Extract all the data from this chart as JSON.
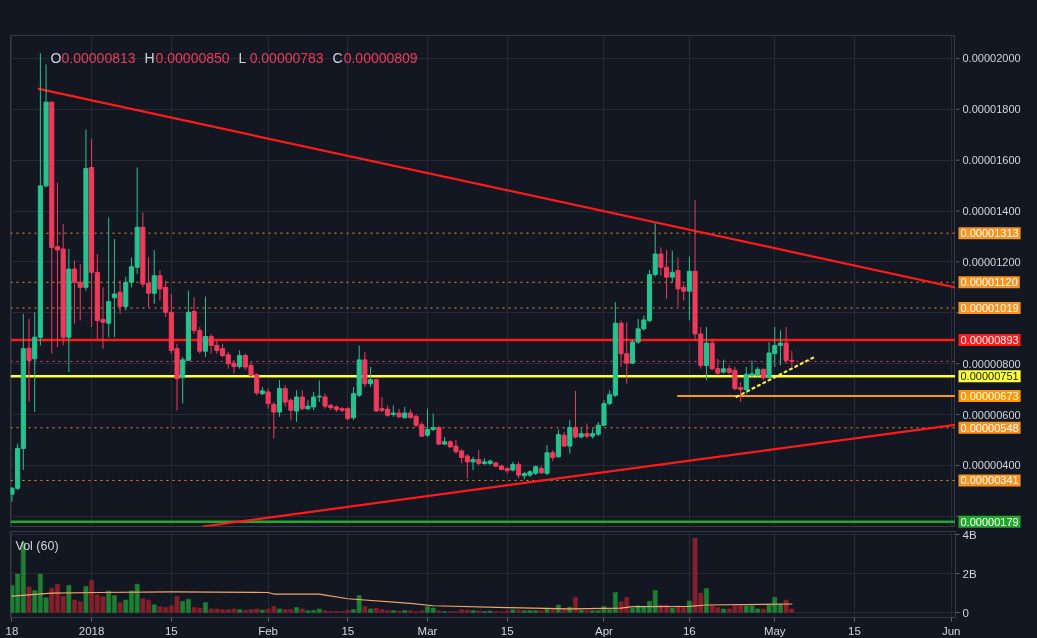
{
  "chart_data": [
    {
      "type": "candlestick",
      "x": [
        "2017-12-18",
        "2017-12-19",
        "2017-12-20",
        "2017-12-21",
        "2017-12-22",
        "2017-12-23",
        "2017-12-24",
        "2017-12-25",
        "2017-12-26",
        "2017-12-27",
        "2017-12-28",
        "2017-12-29",
        "2017-12-30",
        "2017-12-31",
        "2018-01-01",
        "2018-01-02",
        "2018-01-03",
        "2018-01-04",
        "2018-01-05",
        "2018-01-06",
        "2018-01-07",
        "2018-01-08",
        "2018-01-09",
        "2018-01-10",
        "2018-01-11",
        "2018-01-12",
        "2018-01-13",
        "2018-01-14",
        "2018-01-15",
        "2018-01-16",
        "2018-01-17",
        "2018-01-18",
        "2018-01-19",
        "2018-01-20",
        "2018-01-21",
        "2018-01-22",
        "2018-01-23",
        "2018-01-24",
        "2018-01-25",
        "2018-01-26",
        "2018-01-27",
        "2018-01-28",
        "2018-01-29",
        "2018-01-30",
        "2018-01-31",
        "2018-02-01",
        "2018-02-02",
        "2018-02-03",
        "2018-02-04",
        "2018-02-05",
        "2018-02-06",
        "2018-02-07",
        "2018-02-08",
        "2018-02-09",
        "2018-02-10",
        "2018-02-11",
        "2018-02-12",
        "2018-02-13",
        "2018-02-14",
        "2018-02-15",
        "2018-02-16",
        "2018-02-17",
        "2018-02-18",
        "2018-02-19",
        "2018-02-20",
        "2018-02-21",
        "2018-02-22",
        "2018-02-23",
        "2018-02-24",
        "2018-02-25",
        "2018-02-26",
        "2018-02-27",
        "2018-02-28",
        "2018-03-01",
        "2018-03-02",
        "2018-03-03",
        "2018-03-04",
        "2018-03-05",
        "2018-03-06",
        "2018-03-07",
        "2018-03-08",
        "2018-03-09",
        "2018-03-10",
        "2018-03-11",
        "2018-03-12",
        "2018-03-13",
        "2018-03-14",
        "2018-03-15",
        "2018-03-16",
        "2018-03-17",
        "2018-03-18",
        "2018-03-19",
        "2018-03-20",
        "2018-03-21",
        "2018-03-22",
        "2018-03-23",
        "2018-03-24",
        "2018-03-25",
        "2018-03-26",
        "2018-03-27",
        "2018-03-28",
        "2018-03-29",
        "2018-03-30",
        "2018-03-31",
        "2018-04-01",
        "2018-04-02",
        "2018-04-03",
        "2018-04-04",
        "2018-04-05",
        "2018-04-06",
        "2018-04-07",
        "2018-04-08",
        "2018-04-09",
        "2018-04-10",
        "2018-04-11",
        "2018-04-12",
        "2018-04-13",
        "2018-04-14",
        "2018-04-15",
        "2018-04-16",
        "2018-04-17",
        "2018-04-18",
        "2018-04-19",
        "2018-04-20",
        "2018-04-21",
        "2018-04-22",
        "2018-04-23",
        "2018-04-24",
        "2018-04-25",
        "2018-04-26",
        "2018-04-27",
        "2018-04-28",
        "2018-04-29",
        "2018-04-30",
        "2018-05-01",
        "2018-05-02",
        "2018-05-03",
        "2018-05-04"
      ],
      "ohlc": [
        [
          2.87e-06,
          3.16e-06,
          2.57e-06,
          3.1e-06
        ],
        [
          3.1e-06,
          4.86e-06,
          3.03e-06,
          4.67e-06
        ],
        [
          4.67e-06,
          9.96e-06,
          3.82e-06,
          8.59e-06
        ],
        [
          8.61e-06,
          9.76e-06,
          6.5e-06,
          8.13e-06
        ],
        [
          8.19e-06,
          1.002e-05,
          6.1e-06,
          9.04e-06
        ],
        [
          9.04e-06,
          2.02e-05,
          8.72e-06,
          1.499e-05
        ],
        [
          1.499e-05,
          1.976e-05,
          1.493e-05,
          1.828e-05
        ],
        [
          1.828e-05,
          1.83e-05,
          8.39e-06,
          1.257e-05
        ],
        [
          1.26e-05,
          1.512e-05,
          8.65e-06,
          1.247e-05
        ],
        [
          1.251e-05,
          1.349e-05,
          8.72e-06,
          9.04e-06
        ],
        [
          9.04e-06,
          1.251e-05,
          7.67e-06,
          1.172e-05
        ],
        [
          1.172e-05,
          1.205e-05,
          9.57e-06,
          1.12e-05
        ],
        [
          1.12e-05,
          1.192e-05,
          9.7e-06,
          1.1e-05
        ],
        [
          1.1e-05,
          1.721e-05,
          1.087e-05,
          1.567e-05
        ],
        [
          1.571e-05,
          1.682e-05,
          9.44e-06,
          1.159e-05
        ],
        [
          1.159e-05,
          1.231e-05,
          8.98e-06,
          9.7e-06
        ],
        [
          9.74e-06,
          1.1e-05,
          8.59e-06,
          9.63e-06
        ],
        [
          9.59e-06,
          1.375e-05,
          9.04e-06,
          1.044e-05
        ],
        [
          1.059e-05,
          1.29e-05,
          9.04e-06,
          1.074e-05
        ],
        [
          1.081e-05,
          1.127e-05,
          9.96e-06,
          1.025e-05
        ],
        [
          1.025e-05,
          1.142e-05,
          1.009e-05,
          1.12e-05
        ],
        [
          1.12e-05,
          1.218e-05,
          1.1e-05,
          1.181e-05
        ],
        [
          1.179e-05,
          1.571e-05,
          1.153e-05,
          1.336e-05
        ],
        [
          1.336e-05,
          1.394e-05,
          1.1e-05,
          1.113e-05
        ],
        [
          1.116e-05,
          1.218e-05,
          1.022e-05,
          1.077e-05
        ],
        [
          1.077e-05,
          1.247e-05,
          1.035e-05,
          1.146e-05
        ],
        [
          1.146e-05,
          1.166e-05,
          1.048e-05,
          1.094e-05
        ],
        [
          1.1e-05,
          1.127e-05,
          9.83e-06,
          1.002e-05
        ],
        [
          1.002e-05,
          1.074e-05,
          8.39e-06,
          8.52e-06
        ],
        [
          8.59e-06,
          8.78e-06,
          6.17e-06,
          7.41e-06
        ],
        [
          7.45e-06,
          8.26e-06,
          6.43e-06,
          8.15e-06
        ],
        [
          8.13e-06,
          1.087e-05,
          8.13e-06,
          1.002e-05
        ],
        [
          1.005e-05,
          1.061e-05,
          9.17e-06,
          9.3e-06
        ],
        [
          9.3e-06,
          9.44e-06,
          8.39e-06,
          8.49e-06
        ],
        [
          8.49e-06,
          1.064e-05,
          8.26e-06,
          9.07e-06
        ],
        [
          9.07e-06,
          9.17e-06,
          8.39e-06,
          8.72e-06
        ],
        [
          8.72e-06,
          8.91e-06,
          8.39e-06,
          8.52e-06
        ],
        [
          8.59e-06,
          8.78e-06,
          8.26e-06,
          8.32e-06
        ],
        [
          8.35e-06,
          8.46e-06,
          7.8e-06,
          8e-06
        ],
        [
          8.02e-06,
          8.13e-06,
          7.61e-06,
          7.89e-06
        ],
        [
          7.89e-06,
          8.52e-06,
          7.8e-06,
          8.32e-06
        ],
        [
          8.32e-06,
          8.39e-06,
          7.76e-06,
          7.87e-06
        ],
        [
          7.93e-06,
          8.06e-06,
          7.48e-06,
          7.54e-06
        ],
        [
          7.57e-06,
          7.61e-06,
          6.76e-06,
          6.85e-06
        ],
        [
          6.82e-06,
          7.08e-06,
          6.76e-06,
          6.93e-06
        ],
        [
          6.89e-06,
          7.02e-06,
          6.23e-06,
          6.43e-06
        ],
        [
          6.4e-06,
          6.5e-06,
          5.06e-06,
          6.1e-06
        ],
        [
          6.1e-06,
          7.35e-06,
          5.91e-06,
          7.02e-06
        ],
        [
          7.02e-06,
          7.15e-06,
          6.3e-06,
          6.49e-06
        ],
        [
          6.56e-06,
          6.63e-06,
          5.78e-06,
          6.17e-06
        ],
        [
          6.14e-06,
          6.95e-06,
          5.71e-06,
          6.69e-06
        ],
        [
          6.69e-06,
          6.95e-06,
          6.17e-06,
          6.23e-06
        ],
        [
          6.23e-06,
          6.56e-06,
          6.17e-06,
          6.33e-06
        ],
        [
          6.3e-06,
          6.89e-06,
          6.17e-06,
          6.69e-06
        ],
        [
          6.69e-06,
          7.34e-06,
          6.5e-06,
          6.72e-06
        ],
        [
          6.69e-06,
          6.82e-06,
          6.23e-06,
          6.33e-06
        ],
        [
          6.36e-06,
          6.43e-06,
          6.17e-06,
          6.27e-06
        ],
        [
          6.3e-06,
          6.36e-06,
          6.1e-06,
          6.2e-06
        ],
        [
          6.23e-06,
          6.3e-06,
          6.1e-06,
          6.17e-06
        ],
        [
          6.23e-06,
          6.3e-06,
          5.78e-06,
          5.84e-06
        ],
        [
          5.88e-06,
          7.08e-06,
          5.78e-06,
          6.82e-06
        ],
        [
          6.76e-06,
          8.72e-06,
          6.69e-06,
          8.15e-06
        ],
        [
          8.15e-06,
          8.46e-06,
          7.08e-06,
          7.21e-06
        ],
        [
          7.21e-06,
          7.87e-06,
          7.08e-06,
          7.37e-06
        ],
        [
          7.37e-06,
          7.41e-06,
          6.1e-06,
          6.14e-06
        ],
        [
          6.23e-06,
          6.69e-06,
          6.1e-06,
          6.17e-06
        ],
        [
          6.21e-06,
          6.36e-06,
          5.91e-06,
          5.97e-06
        ],
        [
          6e-06,
          6.36e-06,
          5.91e-06,
          6.06e-06
        ],
        [
          6.06e-06,
          6.23e-06,
          5.88e-06,
          5.91e-06
        ],
        [
          5.88e-06,
          6.3e-06,
          5.84e-06,
          6.06e-06
        ],
        [
          6.06e-06,
          6.2e-06,
          5.84e-06,
          5.88e-06
        ],
        [
          5.93e-06,
          6e-06,
          5.51e-06,
          5.58e-06
        ],
        [
          5.6e-06,
          5.71e-06,
          5.12e-06,
          5.15e-06
        ],
        [
          5.19e-06,
          6.24e-06,
          5.12e-06,
          5.41e-06
        ],
        [
          5.41e-06,
          6.04e-06,
          5.35e-06,
          5.49e-06
        ],
        [
          5.49e-06,
          5.56e-06,
          4.8e-06,
          4.84e-06
        ],
        [
          4.84e-06,
          5.12e-06,
          4.8e-06,
          4.93e-06
        ],
        [
          4.93e-06,
          5e-06,
          4.7e-06,
          4.73e-06
        ],
        [
          4.76e-06,
          5e-06,
          4.47e-06,
          4.54e-06
        ],
        [
          4.57e-06,
          4.63e-06,
          4.08e-06,
          4.31e-06
        ],
        [
          4.37e-06,
          4.44e-06,
          3.49e-06,
          4.14e-06
        ],
        [
          4.14e-06,
          4.34e-06,
          3.82e-06,
          4.23e-06
        ],
        [
          4.23e-06,
          4.6e-06,
          4e-06,
          4.08e-06
        ],
        [
          4.08e-06,
          4.28e-06,
          4.02e-06,
          4.14e-06
        ],
        [
          4.08e-06,
          4.23e-06,
          4.02e-06,
          4.17e-06
        ],
        [
          4.1e-06,
          4.14e-06,
          3.95e-06,
          3.97e-06
        ],
        [
          3.98e-06,
          4.04e-06,
          3.8e-06,
          3.84e-06
        ],
        [
          3.88e-06,
          3.94e-06,
          3.69e-06,
          3.79e-06
        ],
        [
          3.82e-06,
          4.14e-06,
          3.76e-06,
          4.04e-06
        ],
        [
          4.04e-06,
          4.14e-06,
          3.49e-06,
          3.62e-06
        ],
        [
          3.59e-06,
          3.75e-06,
          3.45e-06,
          3.68e-06
        ],
        [
          3.62e-06,
          3.82e-06,
          3.55e-06,
          3.75e-06
        ],
        [
          3.69e-06,
          4e-06,
          3.62e-06,
          3.95e-06
        ],
        [
          3.88e-06,
          3.98e-06,
          3.66e-06,
          3.71e-06
        ],
        [
          3.69e-06,
          4.8e-06,
          3.62e-06,
          4.5e-06
        ],
        [
          4.5e-06,
          4.6e-06,
          4.18e-06,
          4.31e-06
        ],
        [
          4.34e-06,
          5.41e-06,
          4.31e-06,
          5.21e-06
        ],
        [
          5.19e-06,
          5.32e-06,
          4.73e-06,
          4.76e-06
        ],
        [
          4.76e-06,
          5.78e-06,
          4.47e-06,
          5.49e-06
        ],
        [
          5.49e-06,
          6.93e-06,
          5.06e-06,
          5.12e-06
        ],
        [
          5.12e-06,
          5.45e-06,
          5.06e-06,
          5.25e-06
        ],
        [
          5.25e-06,
          5.65e-06,
          5.06e-06,
          5.15e-06
        ],
        [
          5.15e-06,
          5.45e-06,
          5.06e-06,
          5.25e-06
        ],
        [
          5.23e-06,
          5.71e-06,
          5.15e-06,
          5.58e-06
        ],
        [
          5.58e-06,
          6.56e-06,
          5.54e-06,
          6.43e-06
        ],
        [
          6.43e-06,
          6.95e-06,
          6.36e-06,
          6.78e-06
        ],
        [
          6.76e-06,
          1.042e-05,
          6.69e-06,
          9.59e-06
        ],
        [
          9.59e-06,
          9.7e-06,
          7.87e-06,
          8.39e-06
        ],
        [
          8.39e-06,
          9.63e-06,
          7.21e-06,
          8.02e-06
        ],
        [
          8.02e-06,
          8.94e-06,
          8e-06,
          8.85e-06
        ],
        [
          8.85e-06,
          9.76e-06,
          8.78e-06,
          9.37e-06
        ],
        [
          9.37e-06,
          9.89e-06,
          9.3e-06,
          9.72e-06
        ],
        [
          9.7e-06,
          1.168e-05,
          9.63e-06,
          1.15e-05
        ],
        [
          1.15e-05,
          1.351e-05,
          1.142e-05,
          1.231e-05
        ],
        [
          1.231e-05,
          1.257e-05,
          1.146e-05,
          1.179e-05
        ],
        [
          1.179e-05,
          1.247e-05,
          1.055e-05,
          1.14e-05
        ],
        [
          1.14e-05,
          1.244e-05,
          1.12e-05,
          1.159e-05
        ],
        [
          1.166e-05,
          1.218e-05,
          1.025e-05,
          1.094e-05
        ],
        [
          1.1e-05,
          1.113e-05,
          1.048e-05,
          1.085e-05
        ],
        [
          1.085e-05,
          1.221e-05,
          9.7e-06,
          1.163e-05
        ],
        [
          1.163e-05,
          1.443e-05,
          8.91e-06,
          9.17e-06
        ],
        [
          9.17e-06,
          9.44e-06,
          7.8e-06,
          7.93e-06
        ],
        [
          7.93e-06,
          9.44e-06,
          7.35e-06,
          8.81e-06
        ],
        [
          8.81e-06,
          8.98e-06,
          7.74e-06,
          7.8e-06
        ],
        [
          7.8e-06,
          8.19e-06,
          7.54e-06,
          7.63e-06
        ],
        [
          7.67e-06,
          8.16e-06,
          7.61e-06,
          7.8e-06
        ],
        [
          7.8e-06,
          7.93e-06,
          7.57e-06,
          7.66e-06
        ],
        [
          7.74e-06,
          7.87e-06,
          6.95e-06,
          7.02e-06
        ],
        [
          7.06e-06,
          7.28e-06,
          6.5e-06,
          6.98e-06
        ],
        [
          6.98e-06,
          7.87e-06,
          6.82e-06,
          7.58e-06
        ],
        [
          7.54e-06,
          8.13e-06,
          7.48e-06,
          7.6e-06
        ],
        [
          7.54e-06,
          7.87e-06,
          7.48e-06,
          7.78e-06
        ],
        [
          7.78e-06,
          7.8e-06,
          7.35e-06,
          7.45e-06
        ],
        [
          7.45e-06,
          8.85e-06,
          7.41e-06,
          8.42e-06
        ],
        [
          8.39e-06,
          9.44e-06,
          7.87e-06,
          8.72e-06
        ],
        [
          8.72e-06,
          9.31e-06,
          7.93e-06,
          8.81e-06
        ],
        [
          8.81e-06,
          9.44e-06,
          8e-06,
          8.13e-06
        ],
        [
          8.13e-06,
          8.5e-06,
          7.83e-06,
          8.09e-06
        ]
      ],
      "colors": [
        "#26c28f",
        "#26c28f",
        "#26c28f",
        "#ef3a5c",
        "#26c28f",
        "#26c28f",
        "#26c28f",
        "#ef3a5c",
        "#ef3a5c",
        "#ef3a5c",
        "#26c28f",
        "#ef3a5c",
        "#ef3a5c",
        "#26c28f",
        "#ef3a5c",
        "#ef3a5c",
        "#ef3a5c",
        "#26c28f",
        "#26c28f",
        "#ef3a5c",
        "#26c28f",
        "#26c28f",
        "#26c28f",
        "#ef3a5c",
        "#ef3a5c",
        "#26c28f",
        "#ef3a5c",
        "#ef3a5c",
        "#ef3a5c",
        "#ef3a5c",
        "#26c28f",
        "#26c28f",
        "#ef3a5c",
        "#ef3a5c",
        "#26c28f",
        "#ef3a5c",
        "#ef3a5c",
        "#ef3a5c",
        "#ef3a5c",
        "#ef3a5c",
        "#26c28f",
        "#ef3a5c",
        "#ef3a5c",
        "#ef3a5c",
        "#26c28f",
        "#ef3a5c",
        "#ef3a5c",
        "#26c28f",
        "#ef3a5c",
        "#ef3a5c",
        "#26c28f",
        "#ef3a5c",
        "#26c28f",
        "#26c28f",
        "#26c28f",
        "#ef3a5c",
        "#ef3a5c",
        "#ef3a5c",
        "#ef3a5c",
        "#ef3a5c",
        "#26c28f",
        "#26c28f",
        "#ef3a5c",
        "#26c28f",
        "#ef3a5c",
        "#ef3a5c",
        "#ef3a5c",
        "#26c28f",
        "#ef3a5c",
        "#26c28f",
        "#ef3a5c",
        "#ef3a5c",
        "#ef3a5c",
        "#26c28f",
        "#26c28f",
        "#ef3a5c",
        "#26c28f",
        "#ef3a5c",
        "#ef3a5c",
        "#ef3a5c",
        "#ef3a5c",
        "#26c28f",
        "#ef3a5c",
        "#26c28f",
        "#26c28f",
        "#ef3a5c",
        "#ef3a5c",
        "#ef3a5c",
        "#26c28f",
        "#ef3a5c",
        "#26c28f",
        "#26c28f",
        "#26c28f",
        "#ef3a5c",
        "#26c28f",
        "#ef3a5c",
        "#26c28f",
        "#ef3a5c",
        "#26c28f",
        "#ef3a5c",
        "#26c28f",
        "#ef3a5c",
        "#26c28f",
        "#26c28f",
        "#26c28f",
        "#26c28f",
        "#26c28f",
        "#ef3a5c",
        "#ef3a5c",
        "#26c28f",
        "#26c28f",
        "#26c28f",
        "#26c28f",
        "#26c28f",
        "#ef3a5c",
        "#ef3a5c",
        "#26c28f",
        "#ef3a5c",
        "#ef3a5c",
        "#26c28f",
        "#ef3a5c",
        "#ef3a5c",
        "#26c28f",
        "#ef3a5c",
        "#ef3a5c",
        "#26c28f",
        "#ef3a5c",
        "#ef3a5c",
        "#ef3a5c",
        "#26c28f",
        "#26c28f",
        "#26c28f",
        "#ef3a5c",
        "#26c28f",
        "#26c28f",
        "#26c28f",
        "#ef3a5c",
        "#ef3a5c"
      ],
      "series": [
        {
          "type": "line",
          "x": [
            "2017-12-22T17:00",
            "2018-06-01T18:00"
          ],
          "values": [
            1.88e-05,
            1.1e-05
          ],
          "color": "#ff1a1a"
        },
        {
          "type": "line",
          "x": [
            "2018-01-20T12:00",
            "2018-06-01T18:00"
          ],
          "values": [
            1.6e-06,
            5.6e-06
          ],
          "color": "#ff1a1a"
        },
        {
          "type": "line",
          "x": [
            "2018-04-14",
            "2018-06-01T18:00"
          ],
          "values": [
            6.73e-06,
            6.73e-06
          ],
          "color": "#ff9800"
        },
        {
          "type": "line",
          "x": [
            "2018-04-24T07:00",
            "2018-05-08T07:00"
          ],
          "values": [
            6.7e-06,
            8.3e-06
          ],
          "color": "#ffeb3b",
          "line_style": "dotted"
        }
      ],
      "ref_lines": [
        {
          "axis": "y",
          "value": 1.313e-05,
          "label": "0.00001313",
          "color": "#f7931e",
          "line_style": "dotted"
        },
        {
          "axis": "y",
          "value": 1.12e-05,
          "label": "0.00001120",
          "color": "#f7931e",
          "line_style": "dotted"
        },
        {
          "axis": "y",
          "value": 1.019e-05,
          "label": "0.00001019",
          "color": "#f7931e",
          "line_style": "dotted"
        },
        {
          "axis": "y",
          "value": 8.93e-06,
          "label": "0.00000893",
          "color": "#ff1a1a",
          "line_style": "solid"
        },
        {
          "axis": "y",
          "value": 8.09e-06,
          "color": "#e8457c",
          "line_style": "dotted"
        },
        {
          "axis": "y",
          "value": 7.51e-06,
          "label": "0.00000751",
          "color": "#ffff3b",
          "line_style": "solid"
        },
        {
          "axis": "y",
          "value": 5.48e-06,
          "label": "0.00000548",
          "color": "#f7931e",
          "line_style": "dotted"
        },
        {
          "axis": "y",
          "value": 3.41e-06,
          "label": "0.00000341",
          "color": "#f7931e",
          "line_style": "dotted"
        },
        {
          "axis": "y",
          "value": 1.79e-06,
          "label": "0.00000179",
          "color": "#22a82a",
          "line_style": "solid"
        }
      ],
      "annotations": [
        "O",
        "0.00000813",
        "H",
        "0.00000850",
        "L",
        "0.00000783",
        "C",
        "0.00000809",
        {
          "text": "0.00000673",
          "x": "2018-06-01T18:00",
          "y": 6.73e-06
        }
      ],
      "xlim": [
        "2017-12-17T18:00",
        "2018-06-01T18:00"
      ],
      "xticks": [
        {
          "value": "2017-12-18",
          "label": null
        },
        {
          "value": "2018-01-01",
          "label": null
        },
        {
          "value": "2018-01-15",
          "label": null
        },
        {
          "value": "2018-02-01",
          "label": null
        },
        {
          "value": "2018-02-15",
          "label": null
        },
        {
          "value": "2018-03-01",
          "label": null
        },
        {
          "value": "2018-03-15",
          "label": null
        },
        {
          "value": "2018-04-01",
          "label": null
        },
        {
          "value": "2018-04-16",
          "label": null
        },
        {
          "value": "2018-05-01",
          "label": null
        },
        {
          "value": "2018-05-15",
          "label": null
        },
        {
          "value": "2018-06-01",
          "label": null
        }
      ],
      "ylim": [
        1.6e-06,
        2.09e-05
      ],
      "yticks": [
        {
          "value": 2e-05,
          "label": "0.00002000"
        },
        {
          "value": 1.8e-05,
          "label": "0.00001800"
        },
        {
          "value": 1.6e-05,
          "label": "0.00001600"
        },
        {
          "value": 1.4e-05,
          "label": "0.00001400"
        },
        {
          "value": 1.2e-05,
          "label": "0.00001200"
        },
        {
          "value": 1e-05,
          "label": null
        },
        {
          "value": 8e-06,
          "label": "0.00000800"
        },
        {
          "value": 6e-06,
          "label": "0.00000600"
        },
        {
          "value": 4e-06,
          "label": "0.00000400"
        },
        {
          "value": 2e-06,
          "label": null
        }
      ],
      "grid": true,
      "tick_labels": "y"
    },
    {
      "type": "bar",
      "title": "Vol (60)",
      "x": [
        "2017-12-18",
        "2017-12-19",
        "2017-12-20",
        "2017-12-21",
        "2017-12-22",
        "2017-12-23",
        "2017-12-24",
        "2017-12-25",
        "2017-12-26",
        "2017-12-27",
        "2017-12-28",
        "2017-12-29",
        "2017-12-30",
        "2017-12-31",
        "2018-01-01",
        "2018-01-02",
        "2018-01-03",
        "2018-01-04",
        "2018-01-05",
        "2018-01-06",
        "2018-01-07",
        "2018-01-08",
        "2018-01-09",
        "2018-01-10",
        "2018-01-11",
        "2018-01-12",
        "2018-01-13",
        "2018-01-14",
        "2018-01-15",
        "2018-01-16",
        "2018-01-17",
        "2018-01-18",
        "2018-01-19",
        "2018-01-20",
        "2018-01-21",
        "2018-01-22",
        "2018-01-23",
        "2018-01-24",
        "2018-01-25",
        "2018-01-26",
        "2018-01-27",
        "2018-01-28",
        "2018-01-29",
        "2018-01-30",
        "2018-01-31",
        "2018-02-01",
        "2018-02-02",
        "2018-02-03",
        "2018-02-04",
        "2018-02-05",
        "2018-02-06",
        "2018-02-07",
        "2018-02-08",
        "2018-02-09",
        "2018-02-10",
        "2018-02-11",
        "2018-02-12",
        "2018-02-13",
        "2018-02-14",
        "2018-02-15",
        "2018-02-16",
        "2018-02-17",
        "2018-02-18",
        "2018-02-19",
        "2018-02-20",
        "2018-02-21",
        "2018-02-22",
        "2018-02-23",
        "2018-02-24",
        "2018-02-25",
        "2018-02-26",
        "2018-02-27",
        "2018-02-28",
        "2018-03-01",
        "2018-03-02",
        "2018-03-03",
        "2018-03-04",
        "2018-03-05",
        "2018-03-06",
        "2018-03-07",
        "2018-03-08",
        "2018-03-09",
        "2018-03-10",
        "2018-03-11",
        "2018-03-12",
        "2018-03-13",
        "2018-03-14",
        "2018-03-15",
        "2018-03-16",
        "2018-03-17",
        "2018-03-18",
        "2018-03-19",
        "2018-03-20",
        "2018-03-21",
        "2018-03-22",
        "2018-03-23",
        "2018-03-24",
        "2018-03-25",
        "2018-03-26",
        "2018-03-27",
        "2018-03-28",
        "2018-03-29",
        "2018-03-30",
        "2018-03-31",
        "2018-04-01",
        "2018-04-02",
        "2018-04-03",
        "2018-04-04",
        "2018-04-05",
        "2018-04-06",
        "2018-04-07",
        "2018-04-08",
        "2018-04-09",
        "2018-04-10",
        "2018-04-11",
        "2018-04-12",
        "2018-04-13",
        "2018-04-14",
        "2018-04-15",
        "2018-04-16",
        "2018-04-17",
        "2018-04-18",
        "2018-04-19",
        "2018-04-20",
        "2018-04-21",
        "2018-04-22",
        "2018-04-23",
        "2018-04-24",
        "2018-04-25",
        "2018-04-26",
        "2018-04-27",
        "2018-04-28",
        "2018-04-29",
        "2018-04-30",
        "2018-05-01",
        "2018-05-02",
        "2018-05-03",
        "2018-05-04"
      ],
      "series": [
        {
          "color": "#1e7f34",
          "values": [
            1.4,
            1.97,
            3.58,
            null,
            1.13,
            1.97,
            0.76,
            null,
            null,
            null,
            1.4,
            null,
            null,
            1.35,
            null,
            null,
            null,
            1.11,
            0.87,
            null,
            0.65,
            1.11,
            1.45,
            null,
            null,
            0.4,
            null,
            null,
            null,
            null,
            0.58,
            0.68,
            null,
            null,
            0.52,
            null,
            null,
            null,
            null,
            null,
            0.15,
            null,
            null,
            null,
            0.13,
            null,
            null,
            0.19,
            null,
            null,
            0.26,
            null,
            0.1,
            0.11,
            0.19,
            null,
            null,
            null,
            null,
            null,
            0.16,
            0.87,
            null,
            0.19,
            null,
            null,
            null,
            0.11,
            null,
            0.11,
            null,
            null,
            null,
            0.31,
            0.24,
            null,
            0.06,
            null,
            null,
            null,
            null,
            0.11,
            null,
            0.06,
            0.08,
            null,
            null,
            null,
            0.15,
            null,
            0.1,
            0.11,
            0.1,
            null,
            0.23,
            null,
            0.39,
            null,
            0.29,
            null,
            0.13,
            null,
            0.1,
            0.11,
            0.31,
            0.16,
            1.03,
            null,
            null,
            0.23,
            0.35,
            0.32,
            0.58,
            1.13,
            null,
            null,
            0.23,
            null,
            null,
            0.6,
            null,
            null,
            1.23,
            null,
            null,
            0.19,
            null,
            null,
            null,
            0.35,
            0.35,
            0.19,
            null,
            0.44,
            0.79,
            0.44,
            null,
            null
          ]
        },
        {
          "color": "#84202b",
          "values": [
            null,
            null,
            null,
            1.32,
            null,
            null,
            null,
            1.24,
            1.45,
            0.84,
            null,
            0.65,
            0.55,
            null,
            1.65,
            0.92,
            0.81,
            null,
            null,
            0.52,
            null,
            null,
            null,
            0.71,
            0.65,
            null,
            0.31,
            0.27,
            0.35,
            0.84,
            null,
            null,
            0.26,
            0.23,
            null,
            0.19,
            0.19,
            0.16,
            0.16,
            0.19,
            null,
            0.11,
            0.16,
            0.19,
            null,
            0.19,
            0.31,
            null,
            0.16,
            0.16,
            null,
            0.19,
            null,
            null,
            null,
            0.1,
            0.06,
            0.06,
            0.06,
            0.11,
            null,
            null,
            0.31,
            null,
            0.23,
            0.16,
            0.11,
            null,
            0.08,
            null,
            0.1,
            0.06,
            0.1,
            null,
            null,
            0.1,
            null,
            0.06,
            0.06,
            0.16,
            0.13,
            null,
            0.1,
            null,
            null,
            0.06,
            0.06,
            0.1,
            null,
            0.13,
            null,
            null,
            null,
            0.1,
            null,
            0.16,
            null,
            0.16,
            null,
            0.79,
            null,
            0.11,
            null,
            null,
            null,
            null,
            null,
            0.55,
            0.79,
            null,
            null,
            null,
            null,
            null,
            0.39,
            0.39,
            null,
            0.35,
            0.26,
            null,
            3.82,
            1.0,
            null,
            0.35,
            0.26,
            null,
            0.19,
            0.35,
            0.35,
            null,
            null,
            null,
            0.19,
            null,
            null,
            null,
            0.65,
            0.19
          ]
        },
        {
          "type": "line",
          "x": [
            "2017-12-18",
            "2017-12-25",
            "2018-01-02",
            "2018-01-15",
            "2018-02-01",
            "2018-02-02",
            "2018-02-10",
            "2018-02-15",
            "2018-02-26",
            "2018-03-02",
            "2018-03-15",
            "2018-03-26",
            "2018-04-04",
            "2018-04-06",
            "2018-04-16",
            "2018-04-19",
            "2018-05-04"
          ],
          "values": [
            0.84,
            1.0,
            1.03,
            1.06,
            1.03,
            0.95,
            0.95,
            0.71,
            0.47,
            0.35,
            0.26,
            0.19,
            0.23,
            0.31,
            0.32,
            0.39,
            0.44
          ],
          "color": "#f4a36c"
        }
      ],
      "xlim": [
        "2017-12-17T18:00",
        "2018-06-01T18:00"
      ],
      "xticks": [
        {
          "value": "2017-12-18",
          "label": "18"
        },
        {
          "value": "2018-01-01",
          "label": "2018"
        },
        {
          "value": "2018-01-15",
          "label": "15"
        },
        {
          "value": "2018-02-01",
          "label": "Feb"
        },
        {
          "value": "2018-02-15",
          "label": "15"
        },
        {
          "value": "2018-03-01",
          "label": "Mar"
        },
        {
          "value": "2018-03-15",
          "label": "15"
        },
        {
          "value": "2018-04-01",
          "label": "Apr"
        },
        {
          "value": "2018-04-16",
          "label": "16"
        },
        {
          "value": "2018-05-01",
          "label": "May"
        },
        {
          "value": "2018-05-15",
          "label": "15"
        },
        {
          "value": "2018-06-01",
          "label": "Jun"
        }
      ],
      "ylim": [
        -0.25,
        4.15
      ],
      "yticks": [
        {
          "value": 4,
          "label": "4B"
        },
        {
          "value": 2,
          "label": "2B"
        },
        0
      ],
      "grid": true
    }
  ]
}
